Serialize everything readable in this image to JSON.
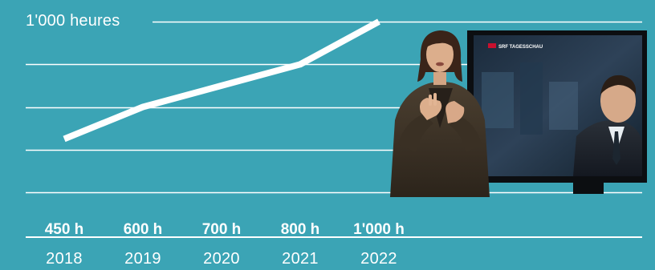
{
  "chart_data": {
    "type": "line",
    "title": "",
    "xlabel": "",
    "ylabel": "",
    "y_max_label": "1'000 heures",
    "x": [
      "2018",
      "2019",
      "2020",
      "2021",
      "2022"
    ],
    "series": [
      {
        "values": [
          450,
          600,
          700,
          800,
          1000
        ],
        "color": "#ffffff"
      }
    ],
    "value_labels": [
      "450 h",
      "600 h",
      "700 h",
      "800 h",
      "1'000 h"
    ],
    "ylim": [
      200,
      1000
    ],
    "grid": true
  },
  "colors": {
    "background": "#3ba4b5",
    "line": "#ffffff",
    "grid": "#ffffff"
  },
  "photo": {
    "tv_channel_label": "SRF TAGESSCHAU"
  }
}
